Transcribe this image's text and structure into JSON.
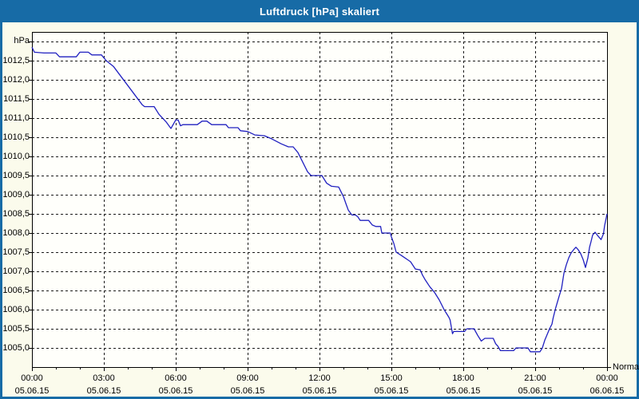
{
  "window": {
    "title": "Luftdruck [hPa] skaliert"
  },
  "axes": {
    "y_unit_label": "hPa",
    "y_tick_labels": [
      "1012,5",
      "1012,0",
      "1011,5",
      "1011,0",
      "1010,5",
      "1010,0",
      "1009,5",
      "1009,0",
      "1008,5",
      "1008,0",
      "1007,5",
      "1007,0",
      "1006,5",
      "1006,0",
      "1005,5",
      "1005,0"
    ],
    "series_label": "Normal"
  },
  "colors": {
    "titlebar": "#176ba6",
    "frame": "#000000",
    "grid": "#1a1a1a",
    "line": "#2020c0",
    "plot_bg": "#fffffb",
    "content_bg": "#fbfbec"
  },
  "chart_data": {
    "type": "line",
    "title": "Luftdruck [hPa] skaliert",
    "ylabel": "hPa",
    "series_name": "Normal",
    "xlim_hours": [
      0,
      24
    ],
    "ylim": [
      1004.5,
      1013.25
    ],
    "y_gridline_range": [
      1005.0,
      1013.0
    ],
    "y_gridline_step": 0.5,
    "grid": true,
    "x_major_ticks": [
      {
        "hour": 0,
        "time": "00:00",
        "date": "05.06.15"
      },
      {
        "hour": 3,
        "time": "03:00",
        "date": "05.06.15"
      },
      {
        "hour": 6,
        "time": "06:00",
        "date": "05.06.15"
      },
      {
        "hour": 9,
        "time": "09:00",
        "date": "05.06.15"
      },
      {
        "hour": 12,
        "time": "12:00",
        "date": "05.06.15"
      },
      {
        "hour": 15,
        "time": "15:00",
        "date": "05.06.15"
      },
      {
        "hour": 18,
        "time": "18:00",
        "date": "05.06.15"
      },
      {
        "hour": 21,
        "time": "21:00",
        "date": "05.06.15"
      },
      {
        "hour": 24,
        "time": "00:00",
        "date": "06.06.15"
      }
    ],
    "x_minor_tick_step_hours": 1,
    "points_hours_hpa": [
      [
        0.0,
        1012.85
      ],
      [
        0.1,
        1012.72
      ],
      [
        0.5,
        1012.7
      ],
      [
        1.0,
        1012.7
      ],
      [
        1.15,
        1012.6
      ],
      [
        1.85,
        1012.6
      ],
      [
        2.0,
        1012.72
      ],
      [
        2.35,
        1012.72
      ],
      [
        2.5,
        1012.65
      ],
      [
        2.9,
        1012.65
      ],
      [
        3.1,
        1012.5
      ],
      [
        3.4,
        1012.35
      ],
      [
        3.7,
        1012.1
      ],
      [
        4.0,
        1011.85
      ],
      [
        4.3,
        1011.6
      ],
      [
        4.6,
        1011.35
      ],
      [
        4.7,
        1011.3
      ],
      [
        5.1,
        1011.3
      ],
      [
        5.3,
        1011.1
      ],
      [
        5.6,
        1010.9
      ],
      [
        5.8,
        1010.73
      ],
      [
        6.0,
        1010.95
      ],
      [
        6.1,
        1010.95
      ],
      [
        6.2,
        1010.8
      ],
      [
        6.3,
        1010.83
      ],
      [
        6.9,
        1010.83
      ],
      [
        7.1,
        1010.92
      ],
      [
        7.3,
        1010.92
      ],
      [
        7.5,
        1010.83
      ],
      [
        8.1,
        1010.83
      ],
      [
        8.2,
        1010.75
      ],
      [
        8.6,
        1010.75
      ],
      [
        8.7,
        1010.67
      ],
      [
        9.0,
        1010.65
      ],
      [
        9.3,
        1010.56
      ],
      [
        9.7,
        1010.54
      ],
      [
        10.0,
        1010.46
      ],
      [
        10.4,
        1010.33
      ],
      [
        10.7,
        1010.25
      ],
      [
        10.9,
        1010.25
      ],
      [
        11.1,
        1010.1
      ],
      [
        11.3,
        1009.85
      ],
      [
        11.5,
        1009.6
      ],
      [
        11.65,
        1009.5
      ],
      [
        12.1,
        1009.5
      ],
      [
        12.3,
        1009.3
      ],
      [
        12.5,
        1009.22
      ],
      [
        12.8,
        1009.2
      ],
      [
        13.0,
        1008.95
      ],
      [
        13.1,
        1008.77
      ],
      [
        13.2,
        1008.6
      ],
      [
        13.35,
        1008.47
      ],
      [
        13.5,
        1008.47
      ],
      [
        13.6,
        1008.42
      ],
      [
        13.7,
        1008.33
      ],
      [
        14.05,
        1008.33
      ],
      [
        14.2,
        1008.21
      ],
      [
        14.35,
        1008.17
      ],
      [
        14.55,
        1008.17
      ],
      [
        14.6,
        1008.0
      ],
      [
        14.95,
        1008.0
      ],
      [
        15.0,
        1007.9
      ],
      [
        15.1,
        1007.73
      ],
      [
        15.2,
        1007.5
      ],
      [
        15.4,
        1007.42
      ],
      [
        15.8,
        1007.25
      ],
      [
        16.0,
        1007.06
      ],
      [
        16.2,
        1007.04
      ],
      [
        16.3,
        1006.9
      ],
      [
        16.4,
        1006.79
      ],
      [
        16.6,
        1006.6
      ],
      [
        16.8,
        1006.45
      ],
      [
        17.0,
        1006.25
      ],
      [
        17.2,
        1006.0
      ],
      [
        17.4,
        1005.8
      ],
      [
        17.45,
        1005.73
      ],
      [
        17.55,
        1005.37
      ],
      [
        17.6,
        1005.43
      ],
      [
        18.05,
        1005.43
      ],
      [
        18.15,
        1005.5
      ],
      [
        18.45,
        1005.5
      ],
      [
        18.6,
        1005.33
      ],
      [
        18.75,
        1005.18
      ],
      [
        18.9,
        1005.25
      ],
      [
        19.25,
        1005.25
      ],
      [
        19.35,
        1005.11
      ],
      [
        19.45,
        1005.04
      ],
      [
        19.55,
        1004.93
      ],
      [
        20.1,
        1004.93
      ],
      [
        20.2,
        1005.0
      ],
      [
        20.7,
        1005.0
      ],
      [
        20.8,
        1004.9
      ],
      [
        21.2,
        1004.9
      ],
      [
        21.3,
        1005.0
      ],
      [
        21.4,
        1005.2
      ],
      [
        21.5,
        1005.35
      ],
      [
        21.6,
        1005.5
      ],
      [
        21.7,
        1005.62
      ],
      [
        21.75,
        1005.78
      ],
      [
        21.85,
        1006.03
      ],
      [
        22.0,
        1006.35
      ],
      [
        22.1,
        1006.55
      ],
      [
        22.2,
        1006.95
      ],
      [
        22.3,
        1007.17
      ],
      [
        22.4,
        1007.35
      ],
      [
        22.5,
        1007.48
      ],
      [
        22.6,
        1007.56
      ],
      [
        22.7,
        1007.63
      ],
      [
        22.8,
        1007.56
      ],
      [
        22.9,
        1007.46
      ],
      [
        23.0,
        1007.31
      ],
      [
        23.1,
        1007.1
      ],
      [
        23.2,
        1007.35
      ],
      [
        23.27,
        1007.63
      ],
      [
        23.33,
        1007.77
      ],
      [
        23.4,
        1007.95
      ],
      [
        23.5,
        1008.02
      ],
      [
        23.6,
        1007.94
      ],
      [
        23.75,
        1007.83
      ],
      [
        23.85,
        1007.98
      ],
      [
        23.9,
        1008.2
      ],
      [
        23.95,
        1008.35
      ],
      [
        24.0,
        1008.5
      ]
    ]
  }
}
